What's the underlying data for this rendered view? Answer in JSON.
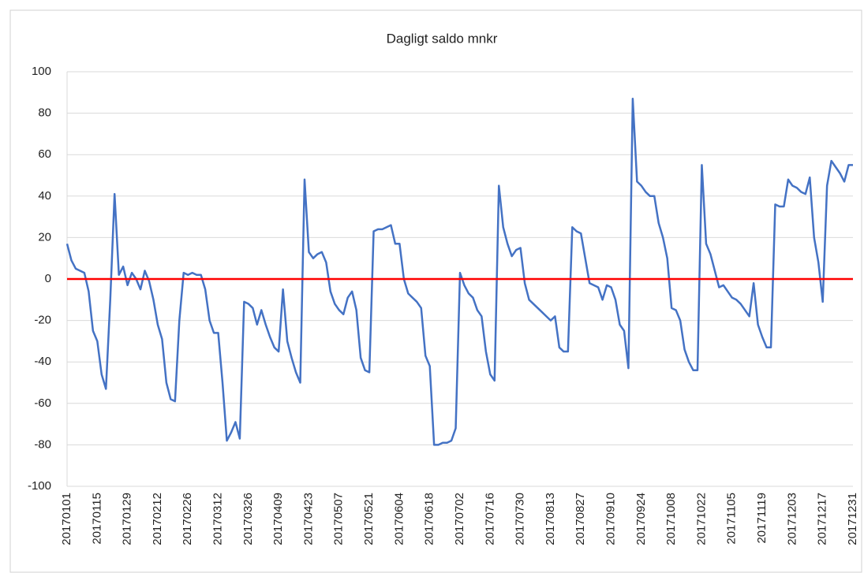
{
  "chart_data": {
    "type": "line",
    "title": "Dagligt saldo mnkr",
    "categories": [
      "20170101",
      null,
      null,
      null,
      null,
      null,
      null,
      "20170115",
      null,
      null,
      null,
      null,
      null,
      null,
      "20170129",
      null,
      null,
      null,
      null,
      null,
      null,
      "20170212",
      null,
      null,
      null,
      null,
      null,
      null,
      "20170226",
      null,
      null,
      null,
      null,
      null,
      null,
      "20170312",
      null,
      null,
      null,
      null,
      null,
      null,
      "20170326",
      null,
      null,
      null,
      null,
      null,
      null,
      "20170409",
      null,
      null,
      null,
      null,
      null,
      null,
      "20170423",
      null,
      null,
      null,
      null,
      null,
      null,
      "20170507",
      null,
      null,
      null,
      null,
      null,
      null,
      "20170521",
      null,
      null,
      null,
      null,
      null,
      null,
      "20170604",
      null,
      null,
      null,
      null,
      null,
      null,
      "20170618",
      null,
      null,
      null,
      null,
      null,
      null,
      "20170702",
      null,
      null,
      null,
      null,
      null,
      null,
      "20170716",
      null,
      null,
      null,
      null,
      null,
      null,
      "20170730",
      null,
      null,
      null,
      null,
      null,
      null,
      "20170813",
      null,
      null,
      null,
      null,
      null,
      null,
      "20170827",
      null,
      null,
      null,
      null,
      null,
      null,
      "20170910",
      null,
      null,
      null,
      null,
      null,
      null,
      "20170924",
      null,
      null,
      null,
      null,
      null,
      null,
      "20171008",
      null,
      null,
      null,
      null,
      null,
      null,
      "20171022",
      null,
      null,
      null,
      null,
      null,
      null,
      "20171105",
      null,
      null,
      null,
      null,
      null,
      null,
      "20171119",
      null,
      null,
      null,
      null,
      null,
      null,
      "20171203",
      null,
      null,
      null,
      null,
      null,
      null,
      "20171217",
      null,
      null,
      null,
      null,
      null,
      null,
      "20171231"
    ],
    "color": "#4472c4",
    "values": [
      17,
      9,
      5,
      4,
      3,
      -6,
      -25,
      -30,
      -46,
      -53,
      -10,
      41,
      2,
      6,
      -3,
      3,
      0,
      -5,
      4,
      -1,
      -10,
      -22,
      -29,
      -50,
      -58,
      -59,
      -20,
      3,
      2,
      3,
      2,
      2,
      -5,
      -20,
      -26,
      -26,
      -50,
      -78,
      -74,
      -69,
      -77,
      -11,
      -12,
      -14,
      -22,
      -15,
      -22,
      -28,
      -33,
      -35,
      -5,
      -30,
      -38,
      -45,
      -50,
      48,
      13,
      10,
      12,
      13,
      8,
      -6,
      -12,
      -15,
      -17,
      -9,
      -6,
      -15,
      -38,
      -44,
      -45,
      23,
      24,
      24,
      25,
      26,
      17,
      17,
      0,
      -7,
      -9,
      -11,
      -14,
      -37,
      -42,
      -80,
      -80,
      -79,
      -79,
      -78,
      -72,
      3,
      -3,
      -7,
      -9,
      -15,
      -18,
      -35,
      -46,
      -49,
      45,
      25,
      17,
      11,
      14,
      15,
      -2,
      -10,
      -12,
      -14,
      -16,
      -18,
      -20,
      -18,
      -33,
      -35,
      -35,
      25,
      23,
      22,
      10,
      -2,
      -3,
      -4,
      -10,
      -3,
      -4,
      -10,
      -22,
      -25,
      -43,
      87,
      47,
      45,
      42,
      40,
      40,
      27,
      20,
      10,
      -14,
      -15,
      -20,
      -34,
      -40,
      -44,
      -44,
      55,
      17,
      12,
      4,
      -4,
      -3,
      -6,
      -9,
      -10,
      -12,
      -15,
      -18,
      -2,
      -22,
      -28,
      -33,
      -33,
      36,
      35,
      35,
      48,
      45,
      44,
      42,
      41,
      49,
      20,
      8,
      -11,
      45,
      57,
      54,
      51,
      47,
      55,
      55
    ],
    "ylim": [
      -100,
      100
    ],
    "yticks": [
      -100,
      -80,
      -60,
      -40,
      -20,
      0,
      20,
      40,
      60,
      80,
      100
    ],
    "grid": true,
    "reference_line": {
      "value": 0,
      "color": "#ff0000"
    }
  }
}
